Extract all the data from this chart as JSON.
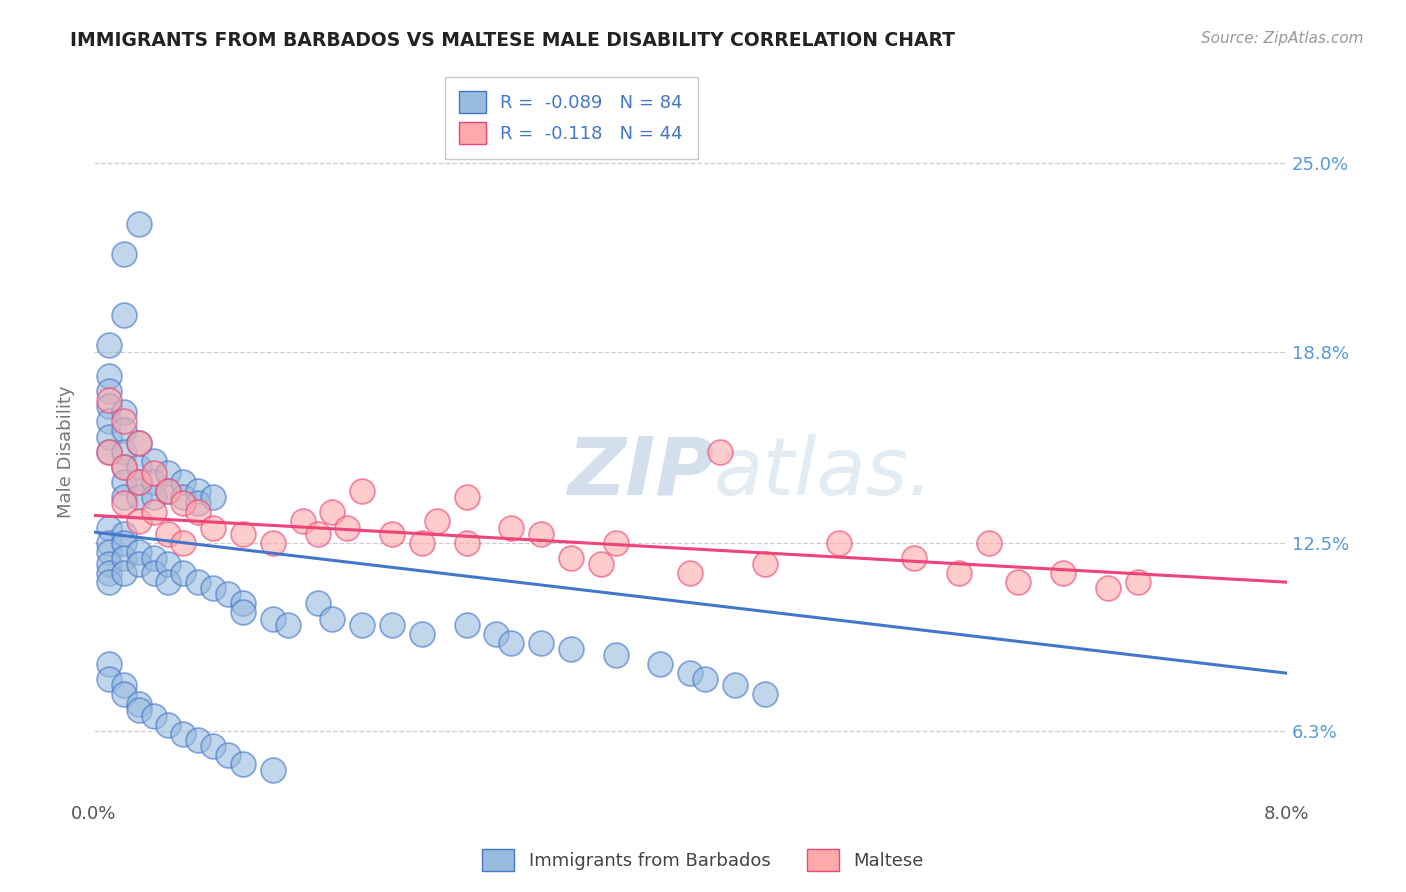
{
  "title": "IMMIGRANTS FROM BARBADOS VS MALTESE MALE DISABILITY CORRELATION CHART",
  "source": "Source: ZipAtlas.com",
  "ylabel": "Male Disability",
  "legend_label1": "Immigrants from Barbados",
  "legend_label2": "Maltese",
  "R1": -0.089,
  "N1": 84,
  "R2": -0.118,
  "N2": 44,
  "x_min": 0.0,
  "x_max": 0.08,
  "y_min": 0.04,
  "y_max": 0.27,
  "y_ticks": [
    0.063,
    0.125,
    0.188,
    0.25
  ],
  "y_tick_labels": [
    "6.3%",
    "12.5%",
    "18.8%",
    "25.0%"
  ],
  "color_blue": "#99BBDD",
  "color_pink": "#FFAAAA",
  "line_blue": "#4477CC",
  "line_pink": "#EE4477",
  "watermark_color": "#C8D8E8",
  "background_color": "#FFFFFF",
  "title_color": "#222222",
  "right_label_color": "#5599DD",
  "grid_color": "#CCCCCC",
  "blue_points_x": [
    0.002,
    0.003,
    0.002,
    0.001,
    0.001,
    0.001,
    0.001,
    0.001,
    0.001,
    0.001,
    0.002,
    0.002,
    0.002,
    0.002,
    0.002,
    0.002,
    0.003,
    0.003,
    0.003,
    0.003,
    0.004,
    0.004,
    0.004,
    0.005,
    0.005,
    0.006,
    0.006,
    0.007,
    0.007,
    0.008,
    0.001,
    0.001,
    0.001,
    0.001,
    0.001,
    0.001,
    0.002,
    0.002,
    0.002,
    0.002,
    0.003,
    0.003,
    0.004,
    0.004,
    0.005,
    0.005,
    0.006,
    0.007,
    0.008,
    0.009,
    0.01,
    0.01,
    0.012,
    0.013,
    0.015,
    0.016,
    0.018,
    0.02,
    0.022,
    0.025,
    0.027,
    0.028,
    0.03,
    0.032,
    0.035,
    0.038,
    0.04,
    0.041,
    0.043,
    0.045,
    0.001,
    0.001,
    0.002,
    0.002,
    0.003,
    0.003,
    0.004,
    0.005,
    0.006,
    0.007,
    0.008,
    0.009,
    0.01,
    0.012
  ],
  "blue_points_y": [
    0.22,
    0.23,
    0.2,
    0.19,
    0.18,
    0.175,
    0.17,
    0.165,
    0.16,
    0.155,
    0.168,
    0.162,
    0.155,
    0.15,
    0.145,
    0.14,
    0.158,
    0.15,
    0.145,
    0.14,
    0.152,
    0.145,
    0.14,
    0.148,
    0.142,
    0.145,
    0.14,
    0.142,
    0.138,
    0.14,
    0.13,
    0.125,
    0.122,
    0.118,
    0.115,
    0.112,
    0.128,
    0.125,
    0.12,
    0.115,
    0.122,
    0.118,
    0.12,
    0.115,
    0.118,
    0.112,
    0.115,
    0.112,
    0.11,
    0.108,
    0.105,
    0.102,
    0.1,
    0.098,
    0.105,
    0.1,
    0.098,
    0.098,
    0.095,
    0.098,
    0.095,
    0.092,
    0.092,
    0.09,
    0.088,
    0.085,
    0.082,
    0.08,
    0.078,
    0.075,
    0.085,
    0.08,
    0.078,
    0.075,
    0.072,
    0.07,
    0.068,
    0.065,
    0.062,
    0.06,
    0.058,
    0.055,
    0.052,
    0.05
  ],
  "pink_points_x": [
    0.001,
    0.001,
    0.002,
    0.002,
    0.002,
    0.003,
    0.003,
    0.003,
    0.004,
    0.004,
    0.005,
    0.005,
    0.006,
    0.006,
    0.007,
    0.008,
    0.01,
    0.012,
    0.014,
    0.015,
    0.016,
    0.017,
    0.018,
    0.02,
    0.022,
    0.023,
    0.025,
    0.025,
    0.028,
    0.03,
    0.032,
    0.034,
    0.035,
    0.04,
    0.042,
    0.045,
    0.05,
    0.055,
    0.058,
    0.06,
    0.062,
    0.065,
    0.068,
    0.07
  ],
  "pink_points_y": [
    0.172,
    0.155,
    0.165,
    0.15,
    0.138,
    0.158,
    0.145,
    0.132,
    0.148,
    0.135,
    0.142,
    0.128,
    0.138,
    0.125,
    0.135,
    0.13,
    0.128,
    0.125,
    0.132,
    0.128,
    0.135,
    0.13,
    0.142,
    0.128,
    0.125,
    0.132,
    0.14,
    0.125,
    0.13,
    0.128,
    0.12,
    0.118,
    0.125,
    0.115,
    0.155,
    0.118,
    0.125,
    0.12,
    0.115,
    0.125,
    0.112,
    0.115,
    0.11,
    0.112
  ],
  "trendline_blue_x0": 0.0,
  "trendline_blue_y0": 0.1285,
  "trendline_blue_x1": 0.08,
  "trendline_blue_y1": 0.082,
  "trendline_pink_x0": 0.0,
  "trendline_pink_y0": 0.134,
  "trendline_pink_x1": 0.08,
  "trendline_pink_y1": 0.112
}
